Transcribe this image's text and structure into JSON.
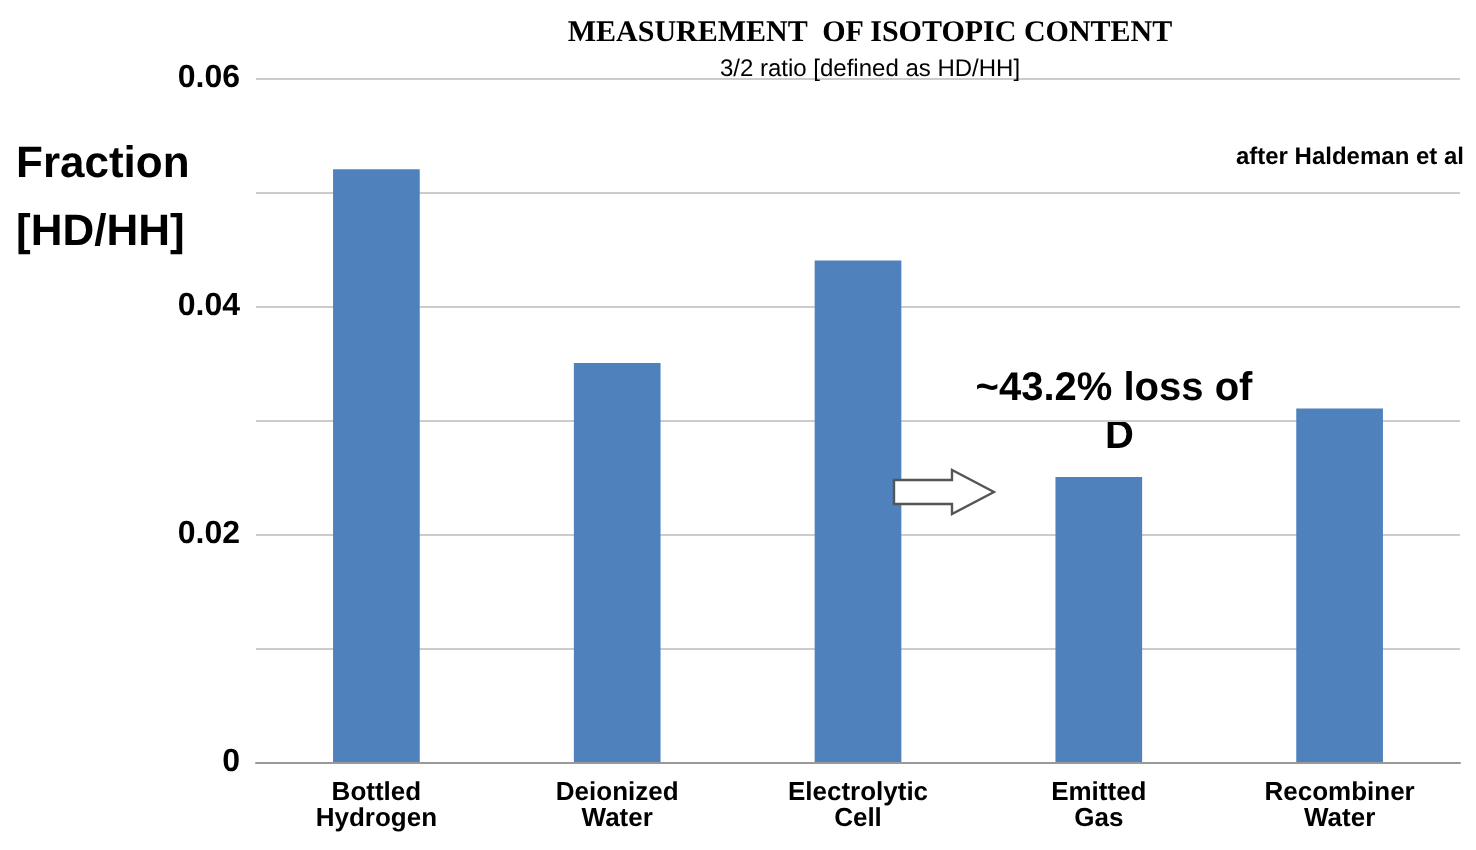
{
  "chart_data": {
    "type": "bar",
    "title": "MEASUREMENT  OF ISOTOPIC CONTENT",
    "subtitle": "3/2 ratio [defined as HD/HH]",
    "ylabel": "Fraction [HD/HH]",
    "categories": [
      "Bottled Hydrogen",
      "Deionized Water",
      "Electrolytic Cell",
      "Emitted Gas",
      "Recombiner Water"
    ],
    "values": [
      0.052,
      0.035,
      0.044,
      0.025,
      0.031
    ],
    "color": "#4f81bd",
    "ylim": [
      0,
      0.06
    ],
    "yticks": [
      0,
      {
        "value": 0.01,
        "label": null
      },
      0.02,
      {
        "value": 0.03,
        "label": null
      },
      0.04,
      {
        "value": 0.05,
        "label": null
      },
      0.06
    ],
    "grid": "y",
    "annotations": [
      "after Haldeman et al",
      "~43.2% loss of D"
    ]
  }
}
